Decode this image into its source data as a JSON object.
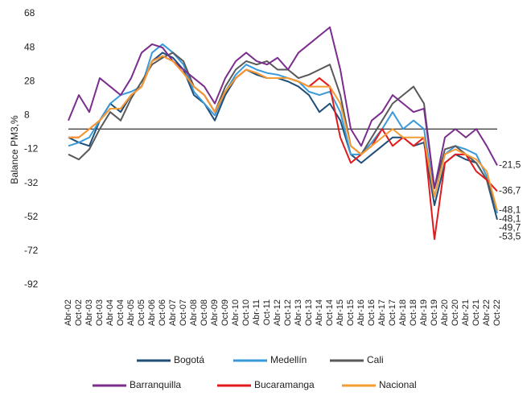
{
  "chart_data": {
    "type": "line",
    "y_label": "Balance PM3,%",
    "categories": [
      "Abr-02",
      "Oct-02",
      "Abr-03",
      "Oct-03",
      "Abr-04",
      "Oct-04",
      "Abr-05",
      "Oct-05",
      "Abr-06",
      "Oct-06",
      "Abr-07",
      "Oct-07",
      "Abr-08",
      "Oct-08",
      "Abr-09",
      "Oct-09",
      "Abr-10",
      "Oct-10",
      "Abr-11",
      "Oct-11",
      "Abr-12",
      "Oct-12",
      "Abr-13",
      "Oct-13",
      "Abr-14",
      "Oct-14",
      "Abr-15",
      "Oct-15",
      "Abr-16",
      "Oct-16",
      "Abr-17",
      "Oct-17",
      "Abr-18",
      "Oct-18",
      "Abr-19",
      "Oct-19",
      "Abr-20",
      "Oct-20",
      "Abr-21",
      "Oct-21",
      "Abr-22",
      "Oct-22"
    ],
    "ylim": [
      -92,
      68
    ],
    "yticks": [
      -92,
      -72,
      -52,
      -32,
      -12,
      8,
      28,
      48,
      68
    ],
    "reference_line": 0,
    "series": [
      {
        "name": "Bogotá",
        "color": "#1f4e79",
        "values": [
          -5,
          -8,
          -10,
          5,
          15,
          10,
          20,
          25,
          40,
          45,
          42,
          35,
          20,
          15,
          5,
          20,
          30,
          35,
          32,
          30,
          30,
          28,
          25,
          20,
          10,
          15,
          5,
          -15,
          -20,
          -15,
          -10,
          -5,
          -5,
          -10,
          -8,
          -45,
          -20,
          -15,
          -18,
          -20,
          -30,
          -53.5
        ],
        "value_labels": [
          null,
          null,
          null,
          null,
          null,
          null,
          null,
          null,
          null,
          null,
          null,
          null,
          null,
          null,
          null,
          null,
          null,
          null,
          null,
          null,
          null,
          null,
          null,
          null,
          null,
          null,
          null,
          null,
          null,
          null,
          null,
          null,
          null,
          null,
          null,
          null,
          null,
          null,
          null,
          null,
          null,
          "-53,5"
        ]
      },
      {
        "name": "Medellín",
        "color": "#3a9ad9",
        "values": [
          -10,
          -8,
          -5,
          5,
          15,
          20,
          22,
          25,
          45,
          50,
          45,
          38,
          22,
          15,
          8,
          22,
          32,
          38,
          35,
          33,
          32,
          30,
          28,
          22,
          20,
          22,
          10,
          -15,
          -15,
          -8,
          0,
          10,
          0,
          5,
          0,
          -40,
          -15,
          -10,
          -12,
          -15,
          -28,
          -49.7
        ],
        "value_labels": [
          null,
          null,
          null,
          null,
          null,
          null,
          null,
          null,
          null,
          null,
          null,
          null,
          null,
          null,
          null,
          null,
          null,
          null,
          null,
          null,
          null,
          null,
          null,
          null,
          null,
          null,
          null,
          null,
          null,
          null,
          null,
          null,
          null,
          null,
          null,
          null,
          null,
          null,
          null,
          null,
          null,
          "-49,7"
        ]
      },
      {
        "name": "Cali",
        "color": "#595959",
        "values": [
          -15,
          -18,
          -12,
          0,
          10,
          5,
          18,
          28,
          38,
          42,
          45,
          40,
          25,
          20,
          10,
          25,
          35,
          40,
          38,
          40,
          35,
          35,
          30,
          32,
          35,
          38,
          20,
          -10,
          -15,
          -5,
          5,
          15,
          20,
          25,
          15,
          -35,
          -12,
          -10,
          -15,
          -20,
          -30,
          -48.1
        ],
        "value_labels": [
          null,
          null,
          null,
          null,
          null,
          null,
          null,
          null,
          null,
          null,
          null,
          null,
          null,
          null,
          null,
          null,
          null,
          null,
          null,
          null,
          null,
          null,
          null,
          null,
          null,
          null,
          null,
          null,
          null,
          null,
          null,
          null,
          null,
          null,
          null,
          null,
          null,
          null,
          null,
          null,
          null,
          "-48,1"
        ]
      },
      {
        "name": "Barranquilla",
        "color": "#7b2d8e",
        "values": [
          5,
          20,
          10,
          30,
          25,
          20,
          30,
          45,
          50,
          48,
          40,
          35,
          30,
          25,
          15,
          30,
          40,
          45,
          40,
          38,
          42,
          35,
          45,
          50,
          55,
          60,
          35,
          0,
          -10,
          5,
          10,
          20,
          15,
          10,
          12,
          -35,
          -5,
          0,
          -5,
          0,
          -10,
          -21.5
        ],
        "value_labels": [
          null,
          null,
          null,
          null,
          null,
          null,
          null,
          null,
          null,
          null,
          null,
          null,
          null,
          null,
          null,
          null,
          null,
          null,
          null,
          null,
          null,
          null,
          null,
          null,
          null,
          null,
          null,
          null,
          null,
          null,
          null,
          null,
          null,
          null,
          null,
          null,
          null,
          null,
          null,
          null,
          null,
          "-21,5"
        ]
      },
      {
        "name": "Bucaramanga",
        "color": "#e31a1c",
        "values": [
          -5,
          -5,
          0,
          5,
          12,
          12,
          20,
          25,
          40,
          43,
          40,
          33,
          25,
          20,
          10,
          22,
          30,
          35,
          33,
          30,
          30,
          30,
          28,
          25,
          30,
          25,
          -5,
          -20,
          -15,
          -10,
          0,
          -10,
          -5,
          -10,
          -5,
          -65,
          -20,
          -15,
          -15,
          -25,
          -30,
          -36.7
        ],
        "value_labels": [
          null,
          null,
          null,
          null,
          null,
          null,
          null,
          null,
          null,
          null,
          null,
          null,
          null,
          null,
          null,
          null,
          null,
          null,
          null,
          null,
          null,
          null,
          null,
          null,
          null,
          null,
          null,
          null,
          null,
          null,
          null,
          null,
          null,
          null,
          null,
          null,
          null,
          null,
          null,
          null,
          null,
          "-36,7"
        ]
      },
      {
        "name": "Nacional",
        "color": "#f39c34",
        "values": [
          -5,
          -5,
          0,
          5,
          12,
          12,
          20,
          25,
          40,
          43,
          40,
          33,
          25,
          20,
          10,
          22,
          30,
          35,
          33,
          30,
          30,
          30,
          28,
          25,
          25,
          25,
          15,
          -10,
          -15,
          -10,
          -5,
          0,
          -5,
          -5,
          -5,
          -40,
          -15,
          -12,
          -15,
          -18,
          -25,
          -48.1
        ],
        "value_labels": [
          null,
          null,
          null,
          null,
          null,
          null,
          null,
          null,
          null,
          null,
          null,
          null,
          null,
          null,
          null,
          null,
          null,
          null,
          null,
          null,
          null,
          null,
          null,
          null,
          null,
          null,
          null,
          null,
          null,
          null,
          null,
          null,
          null,
          null,
          null,
          null,
          null,
          null,
          null,
          null,
          null,
          "-48,1"
        ]
      }
    ]
  }
}
